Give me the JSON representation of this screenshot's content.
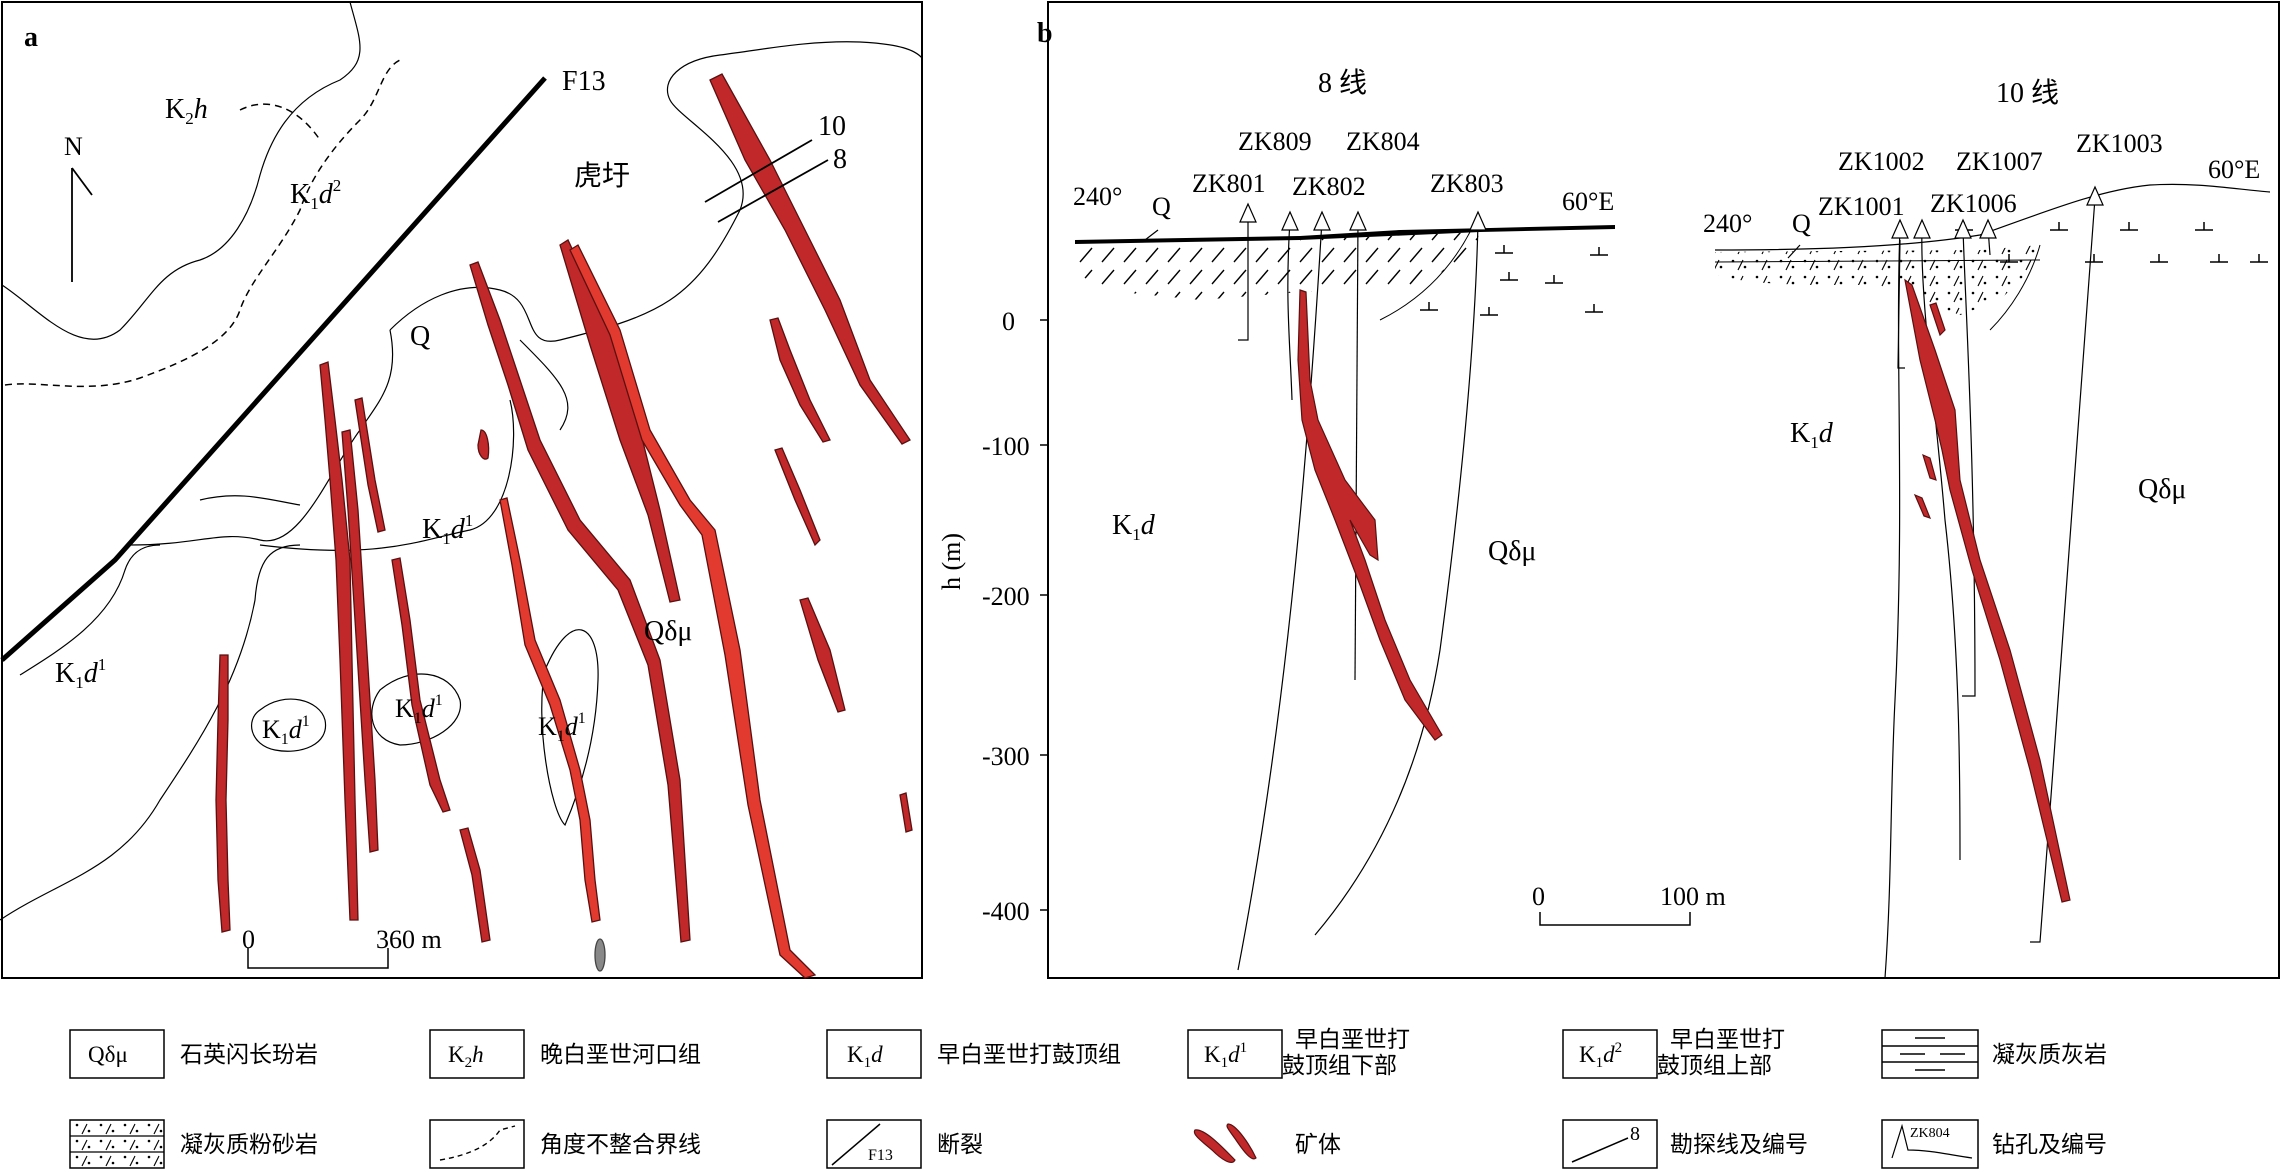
{
  "panel_a": {
    "label": "a",
    "north": "N",
    "fault": "F13",
    "place": "虎圩",
    "lines": {
      "l10": "10",
      "l8": "8"
    },
    "units": {
      "q": "Q",
      "qdm": "Qδμ",
      "k2h": "K2h",
      "k1d2": "K1d2",
      "k1d1": "K1d1"
    },
    "scale": {
      "zero": "0",
      "end": "360 m"
    }
  },
  "panel_b": {
    "label": "b",
    "section8": {
      "title": "8 线",
      "left_azimuth": "240°",
      "right_azimuth": "60°E",
      "q": "Q",
      "holes": [
        "ZK809",
        "ZK804",
        "ZK801",
        "ZK802",
        "ZK803"
      ],
      "unit_left": "K1d",
      "unit_right": "Qδμ"
    },
    "section10": {
      "title": "10 线",
      "left_azimuth": "240°",
      "right_azimuth": "60°E",
      "q": "Q",
      "holes": [
        "ZK1002",
        "ZK1007",
        "ZK1003",
        "ZK1001",
        "ZK1006"
      ],
      "unit_left": "K1d",
      "unit_right": "Qδμ"
    },
    "axis": {
      "label": "h (m)",
      "ticks": [
        "0",
        "-100",
        "-200",
        "-300",
        "-400"
      ]
    },
    "scale": {
      "zero": "0",
      "end": "100 m"
    }
  },
  "legend": [
    {
      "code": "Qδμ",
      "text": [
        "石英闪长玢岩"
      ]
    },
    {
      "code": "K2h",
      "text": [
        "晚白垩世河口组"
      ]
    },
    {
      "code": "K1d",
      "text": [
        "早白垩世打鼓顶组"
      ]
    },
    {
      "code": "K1d1",
      "text": [
        "早白垩世打",
        "鼓顶组下部"
      ]
    },
    {
      "code": "K1d2",
      "text": [
        "早白垩世打",
        "鼓顶组上部"
      ]
    },
    {
      "code": "",
      "text": [
        "凝灰质灰岩"
      ]
    },
    {
      "code": "",
      "text": [
        "凝灰质粉砂岩"
      ]
    },
    {
      "code": "",
      "text": [
        "角度不整合界线"
      ]
    },
    {
      "code": "F13",
      "text": [
        "断裂"
      ]
    },
    {
      "code": "",
      "text": [
        "矿体"
      ]
    },
    {
      "code": "8",
      "text": [
        "勘探线及编号"
      ]
    },
    {
      "code": "ZK804",
      "text": [
        "钻孔及编号"
      ]
    }
  ],
  "colors": {
    "ore": "#c0282a",
    "ore_light": "#e23a2e",
    "ore_edge": "#5a1010",
    "line": "#000000"
  }
}
